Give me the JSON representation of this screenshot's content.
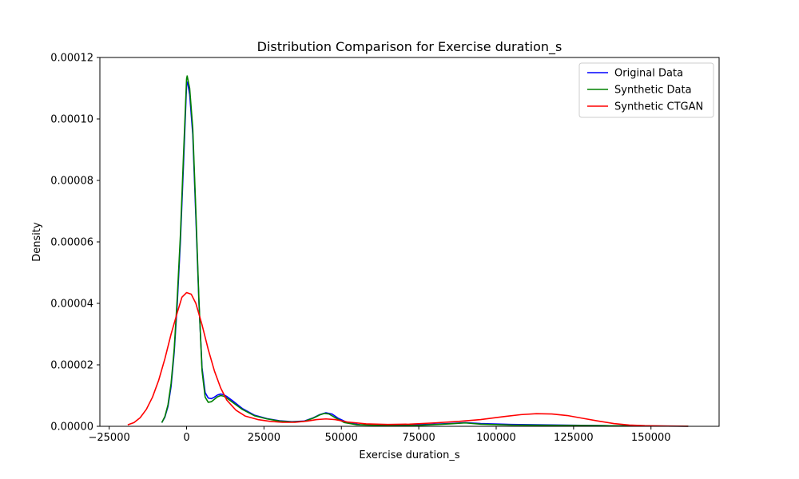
{
  "chart_data": {
    "type": "line",
    "title": "Distribution Comparison for Exercise duration_s",
    "xlabel": "Exercise duration_s",
    "ylabel": "Density",
    "xlim": [
      -28000,
      172000
    ],
    "ylim": [
      0,
      0.00012
    ],
    "xticks": [
      -25000,
      0,
      25000,
      50000,
      75000,
      100000,
      125000,
      150000
    ],
    "xtick_labels": [
      "−25000",
      "0",
      "25000",
      "50000",
      "75000",
      "100000",
      "125000",
      "150000"
    ],
    "yticks": [
      0,
      2e-05,
      4e-05,
      6e-05,
      8e-05,
      0.0001,
      0.00012
    ],
    "ytick_labels": [
      "0.00000",
      "0.00002",
      "0.00004",
      "0.00006",
      "0.00008",
      "0.00010",
      "0.00012"
    ],
    "grid": false,
    "legend_position": "top-right",
    "series": [
      {
        "name": "Original Data",
        "color": "#0000ff",
        "points": [
          [
            -8000,
            1.2e-06
          ],
          [
            -7000,
            3e-06
          ],
          [
            -6000,
            6.5e-06
          ],
          [
            -5000,
            1.3e-05
          ],
          [
            -4000,
            2.4e-05
          ],
          [
            -3000,
            4e-05
          ],
          [
            -2000,
            6e-05
          ],
          [
            -1000,
            8.5e-05
          ],
          [
            0,
            0.000111
          ],
          [
            300,
            0.000112
          ],
          [
            1000,
            0.000108
          ],
          [
            2000,
            9.5e-05
          ],
          [
            3000,
            6.8e-05
          ],
          [
            4000,
            4e-05
          ],
          [
            5000,
            1.9e-05
          ],
          [
            6000,
            1.1e-05
          ],
          [
            7000,
            9.2e-06
          ],
          [
            8000,
            9e-06
          ],
          [
            9000,
            9.5e-06
          ],
          [
            10000,
            1.02e-05
          ],
          [
            11000,
            1.05e-05
          ],
          [
            12000,
            1.03e-05
          ],
          [
            13000,
            9.7e-06
          ],
          [
            15000,
            8.2e-06
          ],
          [
            18000,
            5.8e-06
          ],
          [
            22000,
            3.6e-06
          ],
          [
            26000,
            2.5e-06
          ],
          [
            30000,
            1.8e-06
          ],
          [
            34000,
            1.5e-06
          ],
          [
            38000,
            1.7e-06
          ],
          [
            41000,
            2.8e-06
          ],
          [
            43000,
            3.8e-06
          ],
          [
            45000,
            4.4e-06
          ],
          [
            47000,
            4e-06
          ],
          [
            49000,
            2.6e-06
          ],
          [
            52000,
            1.2e-06
          ],
          [
            56000,
            5e-07
          ],
          [
            65000,
            3e-07
          ],
          [
            75000,
            5e-07
          ],
          [
            85000,
            9e-07
          ],
          [
            90000,
            1.2e-06
          ],
          [
            95000,
            9e-07
          ],
          [
            105000,
            6e-07
          ],
          [
            120000,
            4e-07
          ],
          [
            135000,
            2e-07
          ],
          [
            148000,
            1e-07
          ],
          [
            162000,
            5e-08
          ]
        ]
      },
      {
        "name": "Synthetic Data",
        "color": "#008000",
        "points": [
          [
            -8000,
            1.2e-06
          ],
          [
            -7000,
            3.2e-06
          ],
          [
            -6000,
            7e-06
          ],
          [
            -5000,
            1.4e-05
          ],
          [
            -4000,
            2.5e-05
          ],
          [
            -3000,
            4.2e-05
          ],
          [
            -2000,
            6.2e-05
          ],
          [
            -1000,
            8.8e-05
          ],
          [
            0,
            0.000113
          ],
          [
            200,
            0.000114
          ],
          [
            1000,
            0.00011
          ],
          [
            2000,
            9.7e-05
          ],
          [
            3000,
            7e-05
          ],
          [
            4000,
            4.1e-05
          ],
          [
            5000,
            1.8e-05
          ],
          [
            6000,
            9.5e-06
          ],
          [
            7000,
            7.8e-06
          ],
          [
            8000,
            8e-06
          ],
          [
            9000,
            8.8e-06
          ],
          [
            10000,
            9.6e-06
          ],
          [
            11000,
            1e-05
          ],
          [
            12000,
            9.8e-06
          ],
          [
            13000,
            9.2e-06
          ],
          [
            15000,
            7.7e-06
          ],
          [
            18000,
            5.5e-06
          ],
          [
            22000,
            3.4e-06
          ],
          [
            26000,
            2.4e-06
          ],
          [
            30000,
            1.7e-06
          ],
          [
            34000,
            1.4e-06
          ],
          [
            38000,
            1.6e-06
          ],
          [
            41000,
            2.7e-06
          ],
          [
            43000,
            3.7e-06
          ],
          [
            44500,
            4.2e-06
          ],
          [
            46000,
            4e-06
          ],
          [
            48000,
            2.8e-06
          ],
          [
            51000,
            1.2e-06
          ],
          [
            55000,
            5e-07
          ],
          [
            65000,
            2e-07
          ],
          [
            75000,
            3e-07
          ],
          [
            85000,
            8e-07
          ],
          [
            90000,
            1.1e-06
          ],
          [
            95000,
            7e-07
          ],
          [
            105000,
            4e-07
          ],
          [
            120000,
            3e-07
          ],
          [
            135000,
            2e-07
          ],
          [
            148000,
            1e-07
          ],
          [
            162000,
            5e-08
          ]
        ]
      },
      {
        "name": "Synthetic CTGAN",
        "color": "#ff0000",
        "points": [
          [
            -19000,
            5e-07
          ],
          [
            -17000,
            1.2e-06
          ],
          [
            -15000,
            2.8e-06
          ],
          [
            -13000,
            5.5e-06
          ],
          [
            -11000,
            9.5e-06
          ],
          [
            -9000,
            1.5e-05
          ],
          [
            -7000,
            2.2e-05
          ],
          [
            -5000,
            3e-05
          ],
          [
            -3000,
            3.7e-05
          ],
          [
            -1500,
            4.2e-05
          ],
          [
            0,
            4.35e-05
          ],
          [
            1500,
            4.3e-05
          ],
          [
            3000,
            4e-05
          ],
          [
            5000,
            3.3e-05
          ],
          [
            7000,
            2.5e-05
          ],
          [
            9000,
            1.8e-05
          ],
          [
            11000,
            1.25e-05
          ],
          [
            13000,
            8.5e-06
          ],
          [
            16000,
            5.2e-06
          ],
          [
            19000,
            3.3e-06
          ],
          [
            23000,
            2.2e-06
          ],
          [
            27000,
            1.6e-06
          ],
          [
            31000,
            1.3e-06
          ],
          [
            35000,
            1.3e-06
          ],
          [
            39000,
            1.7e-06
          ],
          [
            42000,
            2.2e-06
          ],
          [
            45000,
            2.4e-06
          ],
          [
            48000,
            2.2e-06
          ],
          [
            52000,
            1.4e-06
          ],
          [
            58000,
            8e-07
          ],
          [
            65000,
            6e-07
          ],
          [
            72000,
            7e-07
          ],
          [
            80000,
            1.1e-06
          ],
          [
            88000,
            1.6e-06
          ],
          [
            95000,
            2.2e-06
          ],
          [
            102000,
            3.1e-06
          ],
          [
            108000,
            3.8e-06
          ],
          [
            113000,
            4.1e-06
          ],
          [
            118000,
            4e-06
          ],
          [
            123000,
            3.5e-06
          ],
          [
            128000,
            2.6e-06
          ],
          [
            133000,
            1.7e-06
          ],
          [
            138000,
            9e-07
          ],
          [
            143000,
            4e-07
          ],
          [
            148000,
            2e-07
          ],
          [
            155000,
            1e-07
          ],
          [
            162000,
            3e-08
          ]
        ]
      }
    ]
  }
}
